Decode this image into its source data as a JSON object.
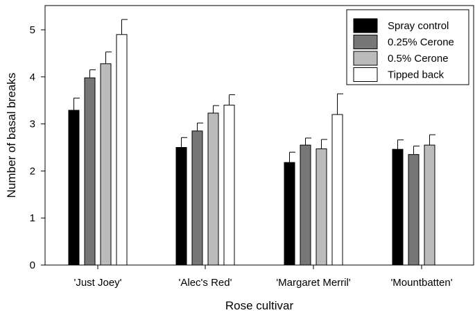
{
  "chart_data": {
    "type": "bar",
    "title": "",
    "xlabel": "Rose cultivar",
    "ylabel": "Number of basal breaks",
    "ylim": [
      0,
      5.5
    ],
    "yticks": [
      "0",
      "1",
      "2",
      "3",
      "4",
      "5"
    ],
    "categories": [
      "'Just Joey'",
      "'Alec's Red'",
      "'Margaret Merril'",
      "'Mountbatten'"
    ],
    "series": [
      {
        "name": "Spray control",
        "color": "#000000",
        "values": [
          3.29,
          2.5,
          2.18,
          2.46
        ],
        "errors": [
          0.26,
          0.21,
          0.22,
          0.2
        ]
      },
      {
        "name": "0.25% Cerone",
        "color": "#777777",
        "values": [
          3.98,
          2.85,
          2.55,
          2.35
        ],
        "errors": [
          0.17,
          0.17,
          0.15,
          0.18
        ]
      },
      {
        "name": "0.5% Cerone",
        "color": "#bbbbbb",
        "values": [
          4.28,
          3.23,
          2.47,
          2.55
        ],
        "errors": [
          0.25,
          0.16,
          0.2,
          0.22
        ]
      },
      {
        "name": "Tipped back",
        "color": "#ffffff",
        "values": [
          4.9,
          3.4,
          3.2,
          null
        ],
        "errors": [
          0.32,
          0.22,
          0.44,
          null
        ]
      }
    ],
    "legend_position": "top-right",
    "grid": false
  }
}
